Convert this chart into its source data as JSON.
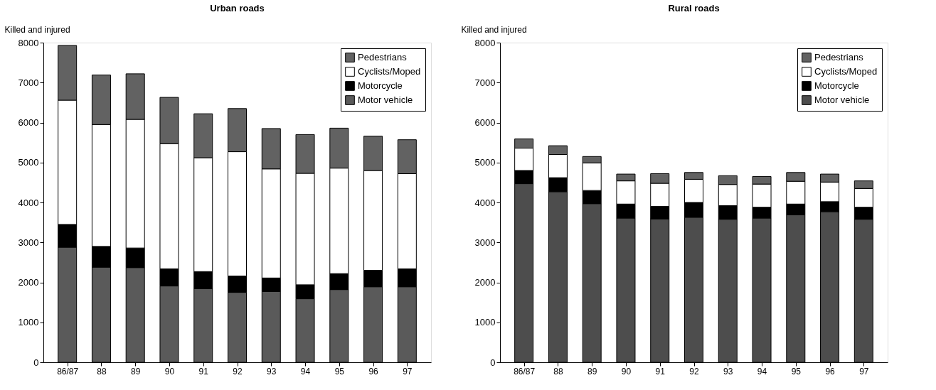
{
  "chart_data": [
    {
      "type": "bar",
      "title": "Urban roads",
      "ylabel": "Killed and injured",
      "stacked": true,
      "legend": "top right",
      "grid": false,
      "categories": [
        "86/87",
        "88",
        "89",
        "90",
        "91",
        "92",
        "93",
        "94",
        "95",
        "96",
        "97"
      ],
      "ylim": [
        0,
        8000
      ],
      "yticks": [
        0,
        1000,
        2000,
        3000,
        4000,
        5000,
        6000,
        7000,
        8000
      ],
      "series": [
        {
          "name": "Motor vehicle",
          "color": "#5a5a5a",
          "values": [
            2880,
            2380,
            2370,
            1910,
            1840,
            1750,
            1770,
            1590,
            1820,
            1890,
            1890
          ]
        },
        {
          "name": "Motorcycle",
          "color": "#000000",
          "values": [
            570,
            520,
            490,
            430,
            430,
            410,
            340,
            350,
            400,
            410,
            450
          ]
        },
        {
          "name": "Cyclists/Moped",
          "color": "#ffffff",
          "values": [
            3110,
            3050,
            3220,
            3130,
            2850,
            3110,
            2730,
            2790,
            2640,
            2500,
            2380
          ]
        },
        {
          "name": "Pedestrians",
          "color": "#626262",
          "values": [
            1370,
            1240,
            1140,
            1160,
            1100,
            1080,
            1010,
            970,
            1000,
            860,
            850
          ]
        }
      ]
    },
    {
      "type": "bar",
      "title": "Rural roads",
      "ylabel": "Killed and injured",
      "stacked": true,
      "legend": "top right",
      "grid": false,
      "categories": [
        "86/87",
        "88",
        "89",
        "90",
        "91",
        "92",
        "93",
        "94",
        "95",
        "96",
        "97"
      ],
      "ylim": [
        0,
        8000
      ],
      "yticks": [
        0,
        1000,
        2000,
        3000,
        4000,
        5000,
        6000,
        7000,
        8000
      ],
      "series": [
        {
          "name": "Motor vehicle",
          "color": "#4d4d4d",
          "values": [
            4470,
            4270,
            3970,
            3610,
            3590,
            3630,
            3580,
            3610,
            3690,
            3770,
            3580
          ]
        },
        {
          "name": "Motorcycle",
          "color": "#000000",
          "values": [
            330,
            350,
            330,
            350,
            310,
            370,
            340,
            270,
            270,
            250,
            300
          ]
        },
        {
          "name": "Cyclists/Moped",
          "color": "#ffffff",
          "values": [
            560,
            580,
            690,
            580,
            580,
            580,
            530,
            580,
            570,
            490,
            470
          ]
        },
        {
          "name": "Pedestrians",
          "color": "#626262",
          "values": [
            230,
            220,
            160,
            170,
            240,
            170,
            220,
            190,
            220,
            200,
            190
          ]
        }
      ]
    }
  ]
}
